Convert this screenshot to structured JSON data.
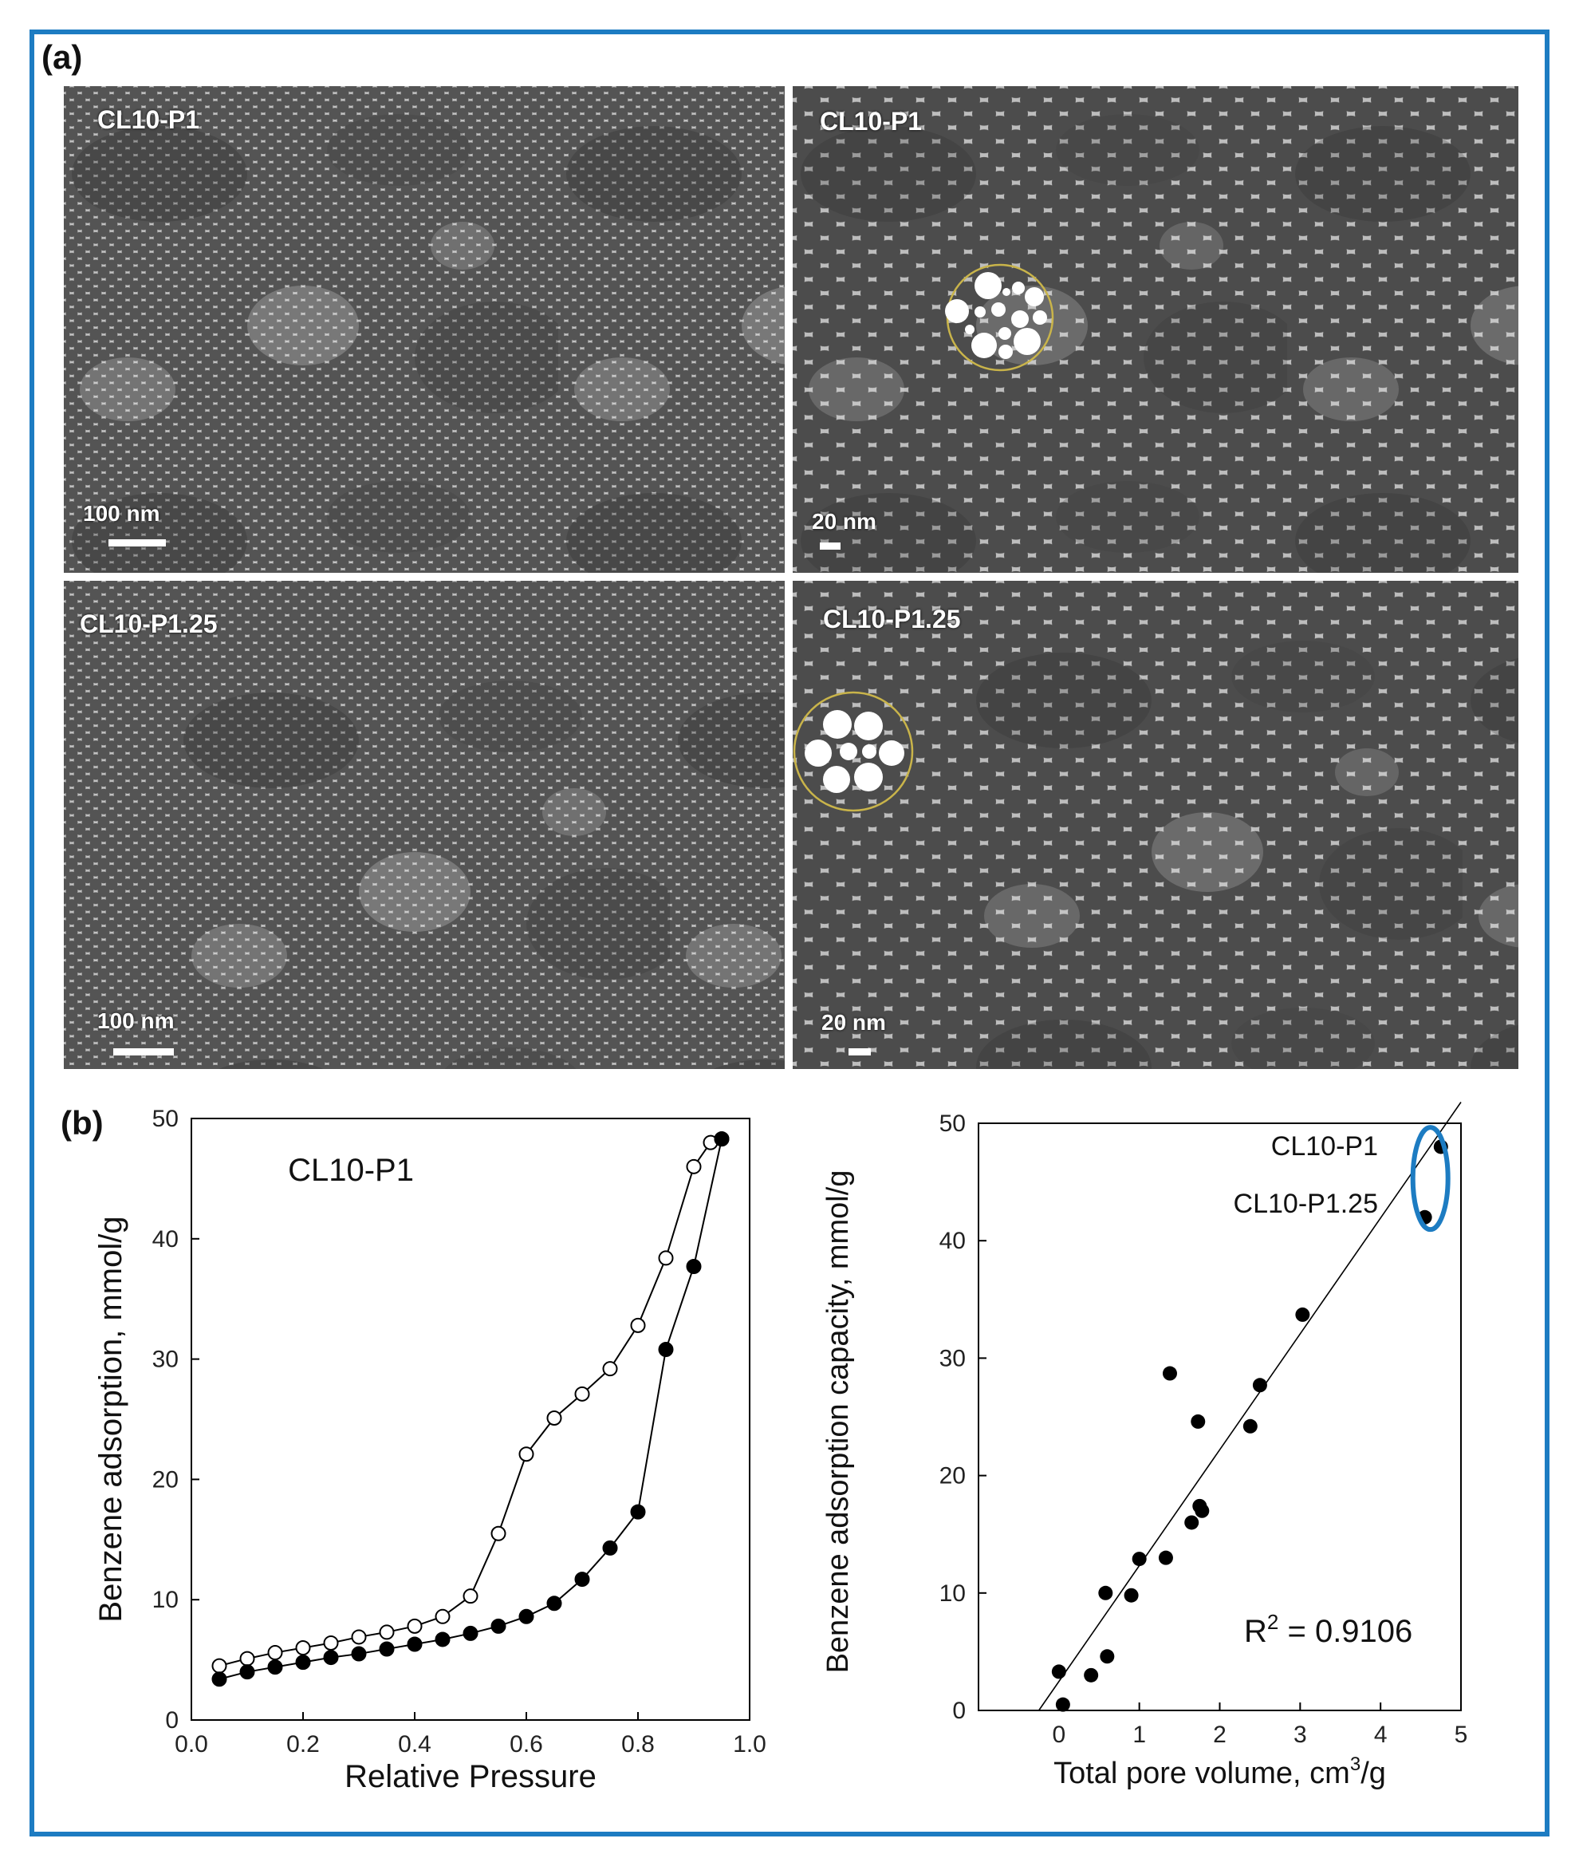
{
  "figure": {
    "panel_a_label": "(a)",
    "panel_b_label": "(b)",
    "accent_color": "#1d7cc2"
  },
  "sem_images": [
    {
      "label": "CL10-P1",
      "scale": "100 nm",
      "inset": false
    },
    {
      "label": "CL10-P1",
      "scale": "20 nm",
      "inset": true
    },
    {
      "label": "CL10-P1.25",
      "scale": "100 nm",
      "inset": false
    },
    {
      "label": "CL10-P1.25",
      "scale": "20 nm",
      "inset": true
    }
  ],
  "chart_data": [
    {
      "type": "line",
      "title": "CL10-P1",
      "xlabel": "Relative Pressure",
      "ylabel": "Benzene adsorption, mmol/g",
      "xlim": [
        0.0,
        1.0
      ],
      "ylim": [
        0,
        50
      ],
      "xticks": [
        "0.0",
        "0.2",
        "0.4",
        "0.6",
        "0.8",
        "1.0"
      ],
      "yticks": [
        "0",
        "10",
        "20",
        "30",
        "40",
        "50"
      ],
      "grid": false,
      "series": [
        {
          "marker": "open-circle",
          "x": [
            0.05,
            0.1,
            0.15,
            0.2,
            0.25,
            0.3,
            0.35,
            0.4,
            0.45,
            0.5,
            0.55,
            0.6,
            0.65,
            0.7,
            0.75,
            0.8,
            0.85,
            0.9,
            0.93,
            0.95
          ],
          "y": [
            4.5,
            5.1,
            5.6,
            6.0,
            6.4,
            6.9,
            7.3,
            7.8,
            8.6,
            10.3,
            15.5,
            22.1,
            25.1,
            27.1,
            29.2,
            32.8,
            38.4,
            46.0,
            48.0,
            48.3
          ]
        },
        {
          "marker": "filled-circle",
          "x": [
            0.05,
            0.1,
            0.15,
            0.2,
            0.25,
            0.3,
            0.35,
            0.4,
            0.45,
            0.5,
            0.55,
            0.6,
            0.65,
            0.7,
            0.75,
            0.8,
            0.85,
            0.9,
            0.95
          ],
          "y": [
            3.4,
            4.0,
            4.4,
            4.8,
            5.2,
            5.5,
            5.9,
            6.3,
            6.7,
            7.2,
            7.8,
            8.6,
            9.7,
            11.7,
            14.3,
            17.3,
            30.8,
            37.7,
            48.3
          ]
        }
      ]
    },
    {
      "type": "scatter",
      "xlabel": "Total pore volume, cm",
      "xlabel_sup": "3",
      "xlabel_suffix": "/g",
      "ylabel": "Benzene adsorption capacity, mmol/g",
      "xlim": [
        -1,
        5
      ],
      "ylim": [
        0,
        50
      ],
      "xticks": [
        "0",
        "1",
        "2",
        "3",
        "4",
        "5"
      ],
      "yticks": [
        "0",
        "10",
        "20",
        "30",
        "40",
        "50"
      ],
      "grid": false,
      "annotations": [
        "CL10-P1",
        "CL10-P1.25"
      ],
      "r2_prefix": "R",
      "r2_sup": "2",
      "r2_value": " = 0.9106",
      "fit_line": {
        "x": [
          -0.25,
          5.0
        ],
        "y": [
          0,
          51.8
        ]
      },
      "points": {
        "x": [
          0.0,
          0.05,
          0.4,
          0.6,
          0.58,
          0.9,
          1.0,
          1.33,
          1.38,
          1.65,
          1.73,
          1.75,
          1.78,
          2.38,
          2.5,
          3.03,
          4.55,
          4.75
        ],
        "y": [
          3.3,
          0.5,
          3.0,
          4.6,
          10.0,
          9.8,
          12.9,
          13.0,
          28.7,
          16.0,
          24.6,
          17.4,
          17.0,
          24.2,
          27.7,
          33.7,
          42.0,
          48.0
        ]
      }
    }
  ]
}
